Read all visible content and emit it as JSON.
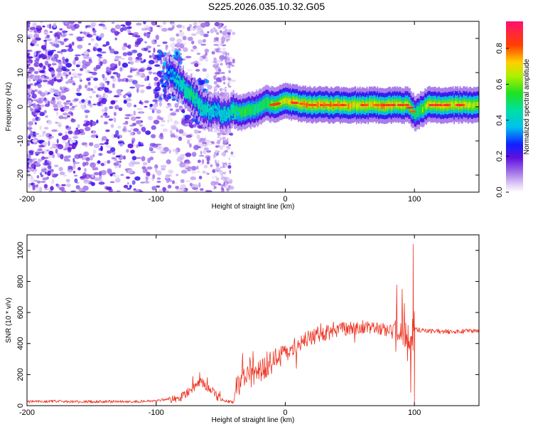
{
  "title": "S225.2026.035.10.32.G05",
  "colors": {
    "snr_line": "#ee3322",
    "axis": "#000000",
    "background": "#ffffff"
  },
  "chart_data": [
    {
      "type": "heatmap",
      "title": "S225.2026.035.10.32.G05",
      "xlabel": "Height of straight line (km)",
      "ylabel": "Frequency (Hz)",
      "xlim": [
        -200,
        150
      ],
      "ylim": [
        -25,
        25
      ],
      "x_ticks": [
        {
          "value": -200,
          "label": "-200"
        },
        {
          "value": -100,
          "label": "-100"
        },
        {
          "value": 0,
          "label": "0"
        },
        {
          "value": 100,
          "label": "100"
        }
      ],
      "y_ticks": [
        {
          "value": 20,
          "label": "20"
        },
        {
          "value": 10,
          "label": "10"
        },
        {
          "value": 0,
          "label": "0"
        },
        {
          "value": -10,
          "label": "-10"
        },
        {
          "value": -20,
          "label": "-20"
        }
      ],
      "colorbar": {
        "label": "Normalized spectral amplitude",
        "range": [
          0.0,
          0.95
        ],
        "colormap": "rainbow",
        "ticks": [
          {
            "value": 0.0,
            "label": "0.0"
          },
          {
            "value": 0.2,
            "label": "0.2"
          },
          {
            "value": 0.4,
            "label": "0.4"
          },
          {
            "value": 0.6,
            "label": "0.6"
          },
          {
            "value": 0.8,
            "label": "0.8"
          }
        ]
      },
      "ridge": {
        "x": [
          -90,
          -80,
          -72,
          -65,
          -60,
          -55,
          -50,
          -45,
          -40,
          -35,
          -30,
          -25,
          -20,
          -15,
          -10,
          -5,
          0,
          10,
          20,
          40,
          60,
          80,
          95,
          100,
          110,
          130,
          150
        ],
        "freq": [
          10,
          6,
          3,
          0,
          -1,
          -1,
          -2,
          -2,
          -1,
          -2,
          -1,
          -1,
          0,
          1,
          0.5,
          1,
          1.5,
          1,
          0.5,
          0.5,
          0.5,
          0.5,
          0.5,
          -2,
          0.5,
          0.5,
          0.5
        ],
        "amplitude": [
          0.3,
          0.45,
          0.55,
          0.5,
          0.45,
          0.35,
          0.45,
          0.4,
          0.55,
          0.6,
          0.6,
          0.55,
          0.55,
          0.6,
          0.65,
          0.7,
          0.75,
          0.8,
          0.8,
          0.82,
          0.78,
          0.8,
          0.72,
          0.5,
          0.75,
          0.78,
          0.72
        ]
      }
    },
    {
      "type": "line",
      "xlabel": "Height of straight line (km)",
      "ylabel": "SNR (10 * v/v)",
      "xlim": [
        -200,
        150
      ],
      "ylim": [
        0,
        1100
      ],
      "x_ticks": [
        {
          "value": -200,
          "label": "-200"
        },
        {
          "value": -100,
          "label": "-100"
        },
        {
          "value": 0,
          "label": "0"
        },
        {
          "value": 100,
          "label": "100"
        }
      ],
      "y_ticks": [
        {
          "value": 0,
          "label": "0"
        },
        {
          "value": 200,
          "label": "200"
        },
        {
          "value": 400,
          "label": "400"
        },
        {
          "value": 600,
          "label": "600"
        },
        {
          "value": 800,
          "label": "800"
        },
        {
          "value": 1000,
          "label": "1000"
        }
      ],
      "series": [
        {
          "name": "SNR",
          "x": [
            -200,
            -180,
            -160,
            -140,
            -120,
            -100,
            -90,
            -80,
            -70,
            -65,
            -60,
            -55,
            -50,
            -40,
            -38,
            -30,
            -20,
            -10,
            0,
            10,
            20,
            30,
            40,
            50,
            60,
            70,
            80,
            90,
            95,
            99,
            100,
            110,
            120,
            130,
            140,
            150
          ],
          "values": [
            25,
            28,
            25,
            27,
            26,
            30,
            45,
            60,
            120,
            150,
            120,
            80,
            40,
            20,
            120,
            180,
            220,
            280,
            330,
            390,
            440,
            470,
            490,
            500,
            510,
            505,
            490,
            480,
            450,
            420,
            490,
            480,
            480,
            475,
            480,
            480
          ]
        }
      ],
      "annotations": [
        {
          "x": 99,
          "value": 1040,
          "label": "spike"
        },
        {
          "x": 100,
          "value": 20,
          "label": "dip"
        }
      ]
    }
  ]
}
